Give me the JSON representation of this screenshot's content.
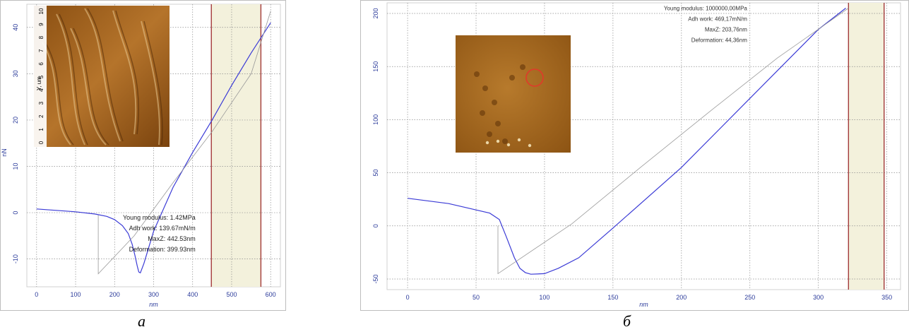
{
  "captions": {
    "a": "a",
    "b": "б"
  },
  "colors": {
    "curve": "#3b3bd6",
    "baseline": "#9a9a9a",
    "marker": "#a33a3a",
    "band": "#f3f1dc",
    "grid": "#8c8c8c",
    "axis_text": "#2a3a9a"
  },
  "chart_data": [
    {
      "id": "a",
      "type": "line",
      "title": "",
      "xlabel": "nm",
      "ylabel": "nN",
      "xlim": [
        -25,
        625
      ],
      "ylim": [
        -16,
        45
      ],
      "xticks": [
        0,
        100,
        200,
        300,
        400,
        500,
        600
      ],
      "yticks": [
        -10,
        0,
        10,
        20,
        30,
        40
      ],
      "grid": true,
      "band": [
        448,
        575
      ],
      "vlines": [
        448,
        575
      ],
      "series": [
        {
          "role": "measured",
          "x": [
            0,
            50,
            100,
            150,
            180,
            200,
            220,
            235,
            245,
            252,
            258,
            262,
            266,
            275,
            300,
            350,
            400,
            450,
            500,
            550,
            600
          ],
          "y": [
            0.8,
            0.5,
            0.2,
            -0.3,
            -0.8,
            -1.5,
            -2.8,
            -4.5,
            -6.8,
            -9.2,
            -11.5,
            -12.8,
            -13.0,
            -11.0,
            -4.0,
            5.5,
            13.0,
            20.0,
            27.5,
            34.5,
            41.0
          ]
        },
        {
          "role": "reference",
          "x": [
            158,
            158,
            250,
            350,
            450,
            550,
            600
          ],
          "y": [
            -0.5,
            -13.2,
            -5.0,
            6.5,
            17.5,
            30.0,
            43.5
          ]
        }
      ],
      "annotations": [
        "Young modulus: 1.42MPa",
        "Adh work: 139.67mN/m",
        "MaxZ: 442.53nm",
        "Deformation: 399.93nm"
      ],
      "inset": {
        "kind": "AFM topography",
        "axis_label": "Y, um",
        "ticks": [
          "0",
          "1",
          "2",
          "3",
          "4",
          "5",
          "6",
          "7",
          "8",
          "9",
          "10"
        ]
      }
    },
    {
      "id": "b",
      "type": "line",
      "title": "",
      "xlabel": "nm",
      "ylabel": "",
      "xlim": [
        -15,
        360
      ],
      "ylim": [
        -60,
        210
      ],
      "xticks": [
        0,
        50,
        100,
        150,
        200,
        250,
        300,
        350
      ],
      "yticks": [
        -50,
        0,
        50,
        100,
        150,
        200
      ],
      "grid": true,
      "band": [
        322,
        348
      ],
      "vlines": [
        322,
        348
      ],
      "series": [
        {
          "role": "measured",
          "x": [
            0,
            30,
            60,
            67,
            72,
            78,
            82,
            86,
            90,
            100,
            110,
            125,
            150,
            200,
            250,
            300,
            320
          ],
          "y": [
            26,
            21,
            12,
            6,
            -10,
            -30,
            -40,
            -44,
            -45.5,
            -45,
            -40,
            -30,
            -2,
            55,
            120,
            185,
            205
          ]
        },
        {
          "role": "reference",
          "x": [
            66,
            66,
            120,
            170,
            220,
            270,
            322
          ],
          "y": [
            0,
            -45,
            2,
            55,
            107,
            158,
            205
          ]
        }
      ],
      "annotations": [
        "Young modulus: 1000000,00MPa",
        "Adh work: 469,17mN/m",
        "MaxZ: 203,76nm",
        "Deformation: 44,36nm"
      ],
      "inset": {
        "kind": "AFM image",
        "marker": "red circle"
      }
    }
  ]
}
